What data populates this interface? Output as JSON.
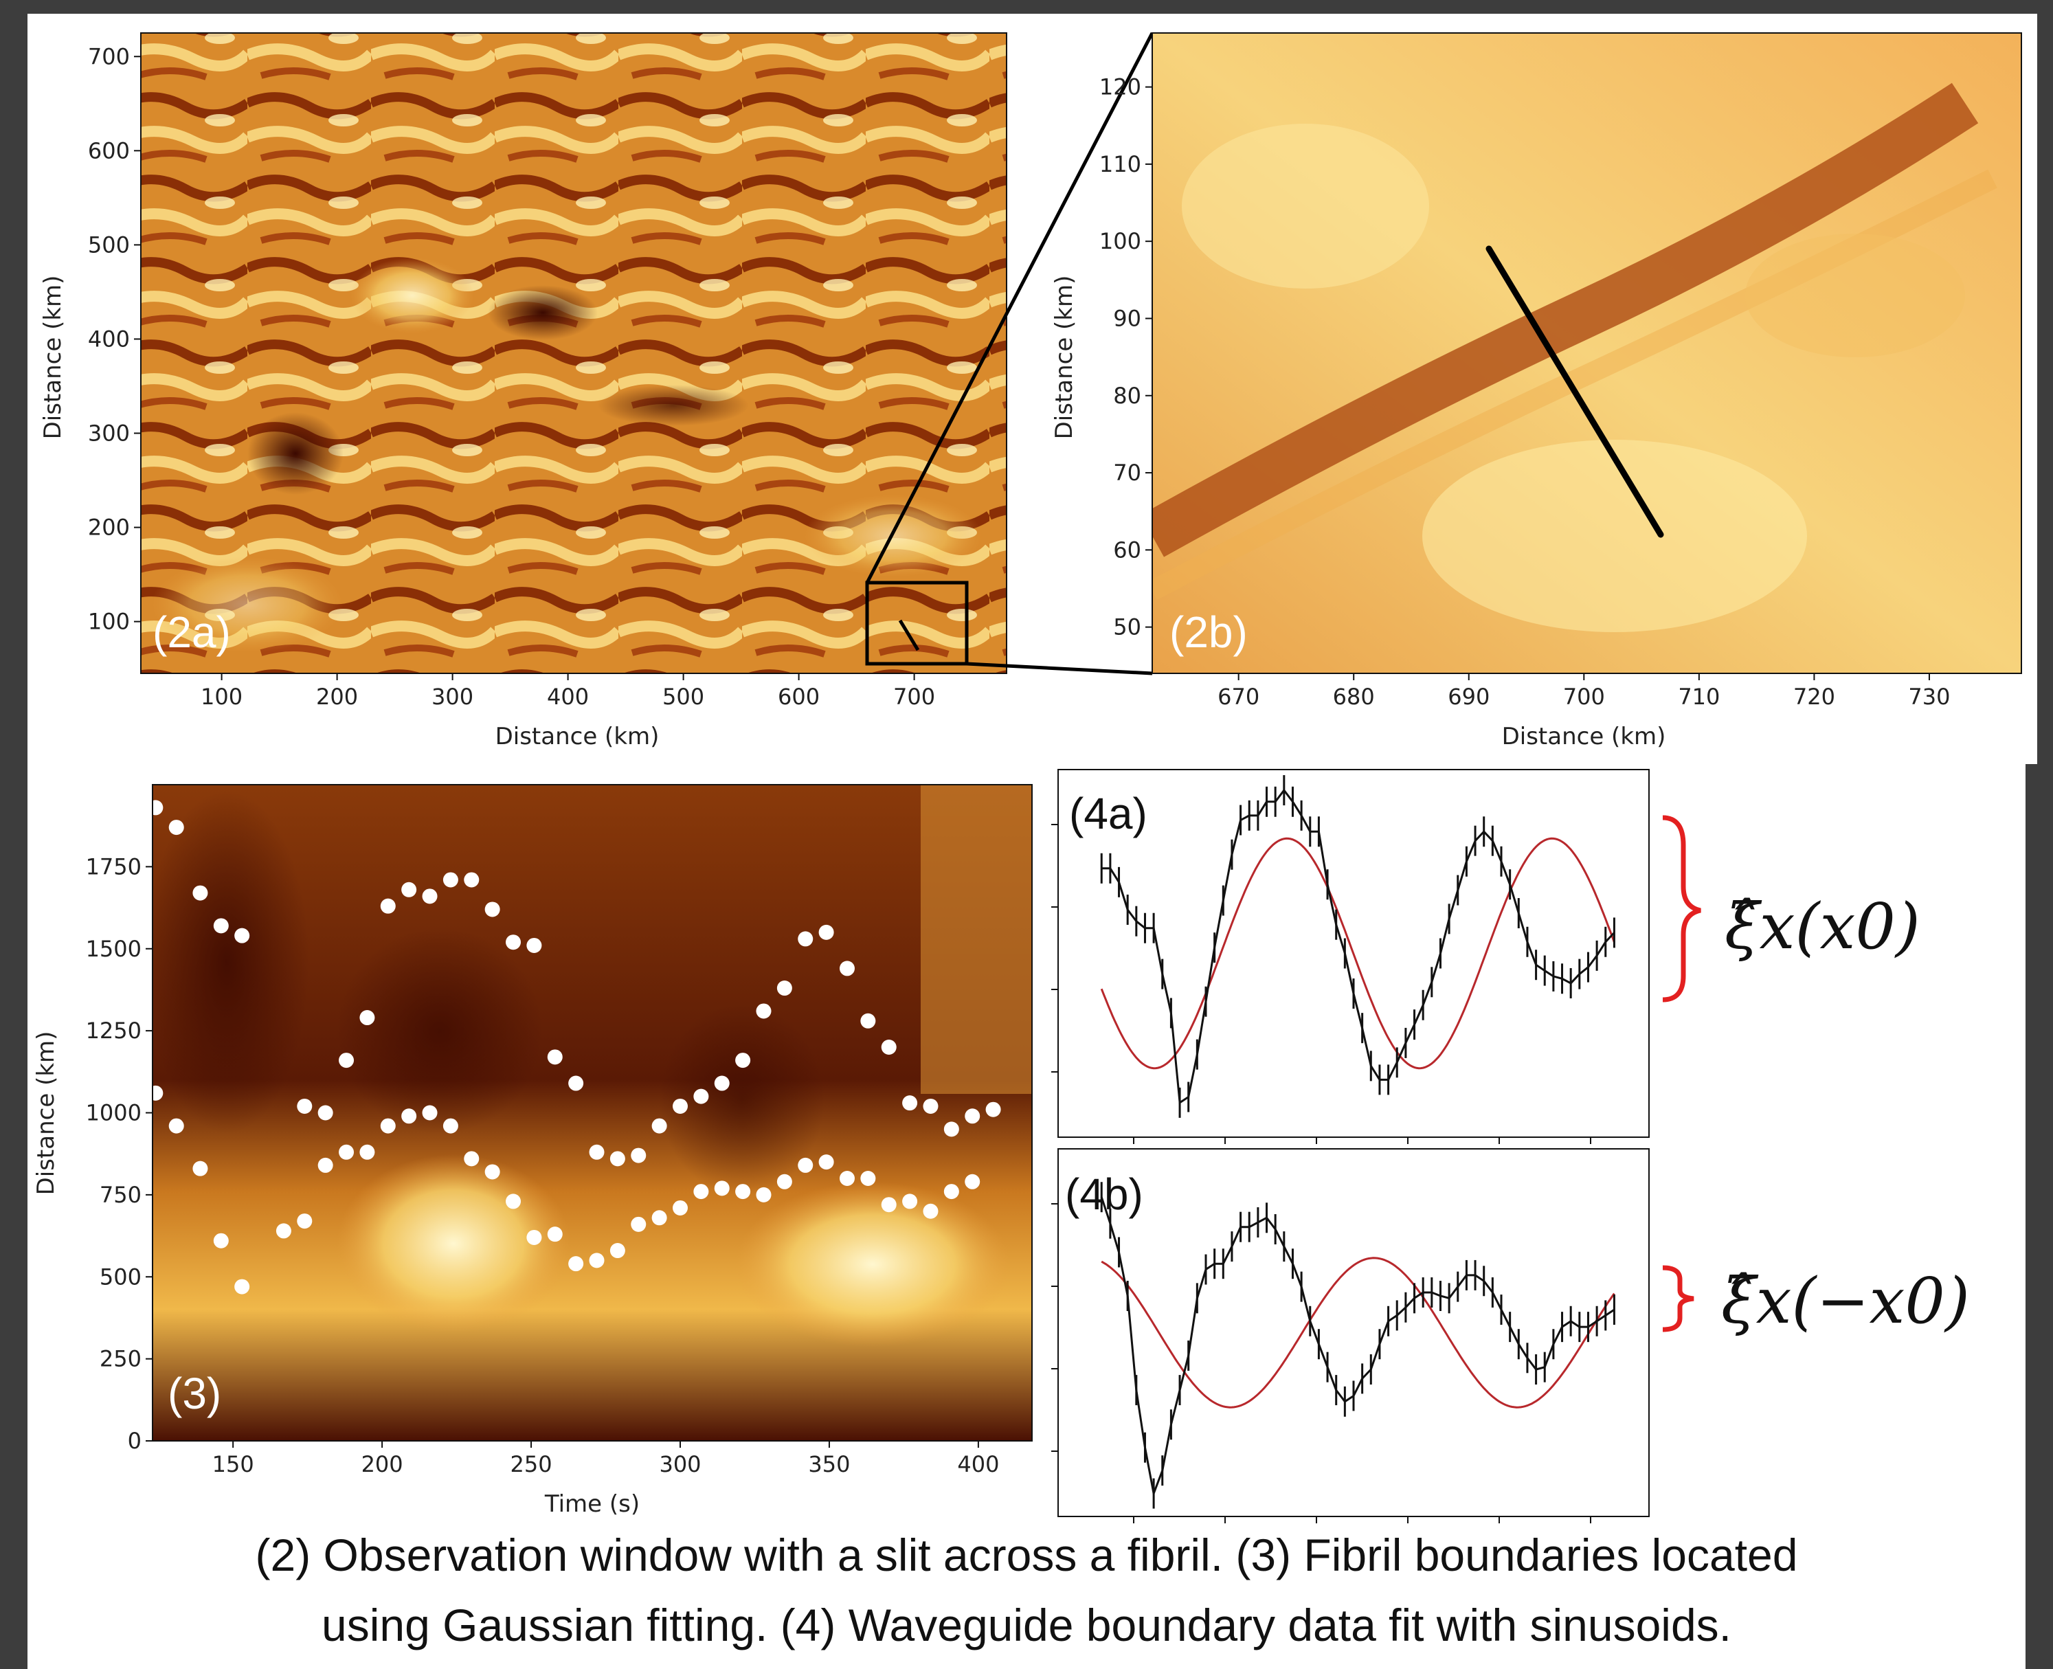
{
  "caption": {
    "line1": "(2) Observation window with a slit across a fibril. (3) Fibril boundaries located",
    "line2": "using Gaussian fitting. (4) Waveguide boundary data fit with sinusoids."
  },
  "colors": {
    "background": "#3d3d3d",
    "fit_line": "#b8282c",
    "brace": "#e32020",
    "data_line": "#111111"
  },
  "panels": {
    "p2a": {
      "label": "(2a)",
      "xlabel": "Distance (km)",
      "ylabel": "Distance (km)",
      "xticks": [
        "100",
        "200",
        "300",
        "400",
        "500",
        "600",
        "700"
      ],
      "yticks": [
        "100",
        "200",
        "300",
        "400",
        "500",
        "600",
        "700"
      ],
      "xlim": [
        30,
        780
      ],
      "ylim": [
        45,
        725
      ]
    },
    "p2b": {
      "label": "(2b)",
      "xlabel": "Distance (km)",
      "ylabel": "Distance (km)",
      "xticks": [
        "670",
        "680",
        "690",
        "700",
        "710",
        "720",
        "730"
      ],
      "yticks": [
        "50",
        "60",
        "70",
        "80",
        "90",
        "100",
        "110",
        "120"
      ],
      "xlim": [
        662.5,
        738
      ],
      "ylim": [
        44,
        127
      ]
    },
    "p3": {
      "label": "(3)",
      "xlabel": "Time (s)",
      "ylabel": "Distance (km)",
      "xticks": [
        "150",
        "200",
        "250",
        "300",
        "350",
        "400"
      ],
      "yticks": [
        "0",
        "250",
        "500",
        "750",
        "1000",
        "1250",
        "1500",
        "1750"
      ],
      "xlim": [
        123,
        418
      ],
      "ylim": [
        0,
        2000
      ]
    },
    "p4a": {
      "label": "(4a)",
      "annotation": "ξ̂x(x0)"
    },
    "p4b": {
      "label": "(4b)",
      "annotation": "ξ̂x(−x0)"
    }
  },
  "chart_data": [
    {
      "type": "scatter",
      "name_ref": "p3",
      "x_unit": "Time (s)",
      "y_unit": "Distance (km)",
      "upper_boundary": {
        "x": [
          124,
          131,
          139,
          146,
          153,
          160,
          167,
          174,
          181,
          188,
          195,
          202,
          209,
          216,
          223,
          230,
          237,
          244,
          251,
          258,
          265,
          272,
          279,
          286,
          293,
          300,
          307,
          314,
          321,
          328,
          335,
          342,
          349,
          356,
          363,
          370,
          377,
          384,
          391,
          398,
          405,
          412
        ],
        "y": [
          1930,
          1870,
          1670,
          1570,
          1540,
          null,
          null,
          1020,
          1000,
          1160,
          1290,
          1630,
          1680,
          1660,
          1710,
          1710,
          1620,
          1520,
          1510,
          1170,
          1090,
          880,
          860,
          870,
          960,
          1020,
          1050,
          1090,
          1160,
          1310,
          1380,
          1530,
          1550,
          1440,
          1280,
          1200,
          1030,
          1020,
          950,
          990,
          1010,
          null
        ]
      },
      "lower_boundary": {
        "x": [
          124,
          131,
          139,
          146,
          153,
          160,
          167,
          174,
          181,
          188,
          195,
          202,
          209,
          216,
          223,
          230,
          237,
          244,
          251,
          258,
          265,
          272,
          279,
          286,
          293,
          300,
          307,
          314,
          321,
          328,
          335,
          342,
          349,
          356,
          363,
          370,
          377,
          384,
          391,
          398,
          405,
          412
        ],
        "y": [
          1060,
          960,
          830,
          610,
          470,
          null,
          640,
          670,
          840,
          880,
          880,
          960,
          990,
          1000,
          960,
          860,
          820,
          730,
          620,
          630,
          540,
          550,
          580,
          660,
          680,
          710,
          760,
          770,
          760,
          750,
          790,
          840,
          850,
          800,
          800,
          720,
          730,
          700,
          760,
          790,
          null,
          null
        ]
      }
    },
    {
      "type": "line",
      "name_ref": "p4a",
      "x": [
        0,
        1,
        2,
        3,
        4,
        5,
        6,
        7,
        8,
        9,
        10,
        11,
        12,
        13,
        14,
        15,
        16,
        17,
        18,
        19,
        20,
        21,
        22,
        23,
        24,
        25,
        26,
        27,
        28,
        29,
        30,
        31,
        32,
        33,
        34,
        35,
        36,
        37,
        38,
        39,
        40,
        41,
        42,
        43,
        44,
        45,
        46,
        47,
        48,
        49,
        50,
        51,
        52,
        53,
        54,
        55,
        56,
        57,
        58,
        59
      ],
      "data": [
        0.74,
        0.74,
        0.62,
        0.38,
        0.28,
        0.22,
        0.22,
        -0.18,
        -0.52,
        -1.3,
        -1.25,
        -0.88,
        -0.42,
        0.05,
        0.46,
        0.86,
        1.16,
        1.2,
        1.2,
        1.32,
        1.32,
        1.42,
        1.32,
        1.2,
        1.06,
        1.06,
        0.6,
        0.25,
        0.0,
        -0.35,
        -0.65,
        -0.98,
        -1.1,
        -1.1,
        -0.95,
        -0.78,
        -0.62,
        -0.45,
        -0.25,
        0.0,
        0.3,
        0.55,
        0.8,
        0.98,
        1.06,
        0.98,
        0.8,
        0.6,
        0.35,
        0.1,
        -0.1,
        -0.15,
        -0.2,
        -0.22,
        -0.26,
        -0.18,
        -0.12,
        -0.02,
        0.1,
        0.18
      ],
      "fit_amplitude": 1.0,
      "fit_period": 30.5,
      "fit_phase": 0.55
    },
    {
      "type": "line",
      "name_ref": "p4b",
      "x": [
        0,
        1,
        2,
        3,
        4,
        5,
        6,
        7,
        8,
        9,
        10,
        11,
        12,
        13,
        14,
        15,
        16,
        17,
        18,
        19,
        20,
        21,
        22,
        23,
        24,
        25,
        26,
        27,
        28,
        29,
        30,
        31,
        32,
        33,
        34,
        35,
        36,
        37,
        38,
        39,
        40,
        41,
        42,
        43,
        44,
        45,
        46,
        47,
        48,
        49,
        50,
        51,
        52,
        53,
        54,
        55,
        56,
        57,
        58,
        59
      ],
      "data": [
        1.18,
        0.95,
        0.7,
        0.32,
        -0.5,
        -1.0,
        -1.4,
        -1.2,
        -0.8,
        -0.5,
        -0.2,
        0.3,
        0.55,
        0.6,
        0.6,
        0.75,
        0.92,
        0.92,
        0.96,
        1.0,
        0.9,
        0.75,
        0.6,
        0.4,
        0.1,
        -0.1,
        -0.3,
        -0.5,
        -0.6,
        -0.55,
        -0.4,
        -0.32,
        -0.1,
        0.1,
        0.15,
        0.22,
        0.3,
        0.35,
        0.35,
        0.32,
        0.3,
        0.4,
        0.5,
        0.5,
        0.45,
        0.35,
        0.2,
        0.05,
        -0.1,
        -0.22,
        -0.32,
        -0.3,
        -0.1,
        0.05,
        0.1,
        0.05,
        0.05,
        0.1,
        0.15,
        0.2
      ],
      "fit_amplitude": 0.65,
      "fit_period": 33.0,
      "fit_phase": 0.3
    }
  ]
}
